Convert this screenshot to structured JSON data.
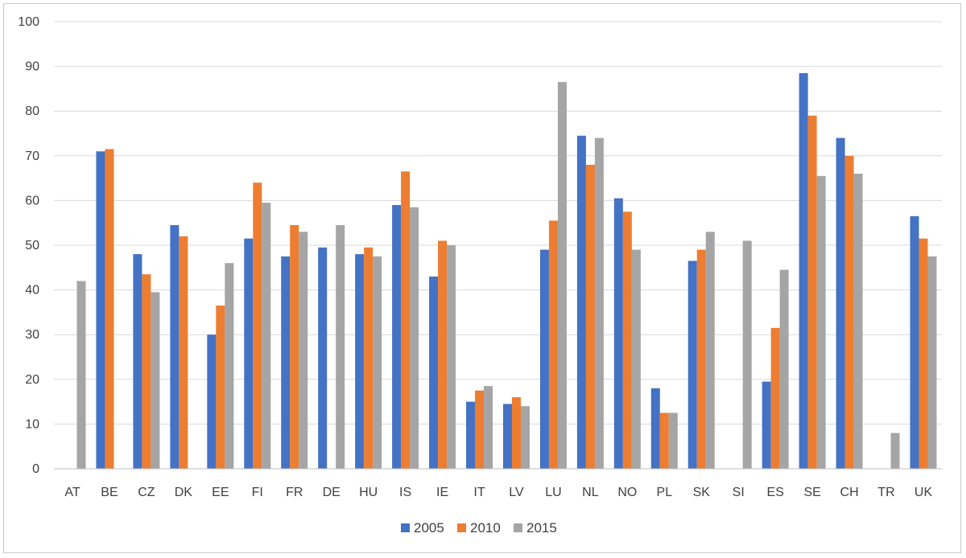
{
  "chart_data": {
    "type": "bar",
    "title": "",
    "xlabel": "",
    "ylabel": "",
    "ylim": [
      0,
      100
    ],
    "yticks": [
      0,
      10,
      20,
      30,
      40,
      50,
      60,
      70,
      80,
      90,
      100
    ],
    "grid": true,
    "legend_position": "bottom",
    "categories": [
      "AT",
      "BE",
      "CZ",
      "DK",
      "EE",
      "FI",
      "FR",
      "DE",
      "HU",
      "IS",
      "IE",
      "IT",
      "LV",
      "LU",
      "NL",
      "NO",
      "PL",
      "SK",
      "SI",
      "ES",
      "SE",
      "CH",
      "TR",
      "UK"
    ],
    "series": [
      {
        "name": "2005",
        "color": "#4472c4",
        "values": [
          null,
          71,
          48,
          54.5,
          30,
          51.5,
          47.5,
          49.5,
          48,
          59,
          43,
          15,
          14.5,
          49,
          74.5,
          60.5,
          18,
          46.5,
          null,
          19.5,
          88.5,
          74,
          null,
          56.5
        ]
      },
      {
        "name": "2010",
        "color": "#ed7d31",
        "values": [
          null,
          71.5,
          43.5,
          52,
          36.5,
          64,
          54.5,
          null,
          49.5,
          66.5,
          51,
          17.5,
          16,
          55.5,
          68,
          57.5,
          12.5,
          49,
          null,
          31.5,
          79,
          70,
          null,
          51.5
        ]
      },
      {
        "name": "2015",
        "color": "#a5a5a5",
        "values": [
          42,
          null,
          39.5,
          null,
          46,
          59.5,
          53,
          54.5,
          47.5,
          58.5,
          50,
          18.5,
          14,
          86.5,
          74,
          49,
          12.5,
          53,
          51,
          44.5,
          65.5,
          66,
          8,
          47.5
        ]
      }
    ]
  }
}
